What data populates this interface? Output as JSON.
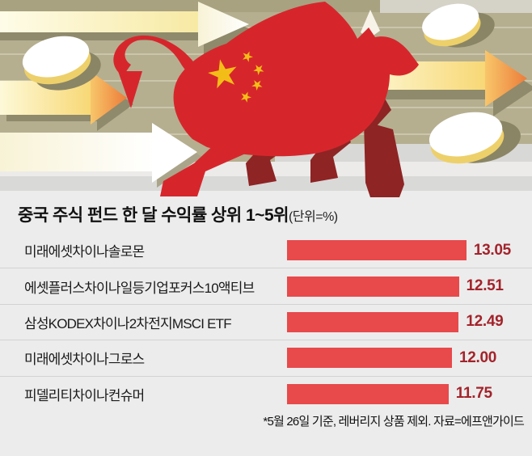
{
  "header_graphic": {
    "icons": [
      {
        "name": "bull-icon",
        "description": "red charging bull with China flag stars",
        "color": "#d6262c",
        "leg_color": "#8e2424"
      },
      {
        "name": "china-star-icon",
        "color": "#f3bd17",
        "count": 5
      },
      {
        "name": "coin-icon",
        "face_color": "#ffffff",
        "rim_color": "#edd06a",
        "count": 3
      },
      {
        "name": "arrow-right-icon",
        "count": 4,
        "colors": [
          "#ffffff",
          "#f7e9a2",
          "#ee7d3a"
        ]
      }
    ],
    "background": {
      "base": "#b5af90",
      "stripe": "#cac5ab",
      "ground": "#d9d9d8"
    }
  },
  "chart": {
    "title": "중국 주식 펀드 한 달 수익률 상위 1~5위",
    "unit_label": "(단위=%)",
    "footnote": "*5월 26일 기준, 레버리지 상품 제외. 자료=에프앤가이드",
    "bar_color": "#e8494b",
    "value_color": "#a3232b",
    "background": "#ececec"
  },
  "chart_data": {
    "type": "bar",
    "orientation": "horizontal",
    "title": "중국 주식 펀드 한 달 수익률 상위 1~5위",
    "unit": "%",
    "categories": [
      "미래에셋차이나솔로몬",
      "에셋플러스차이나일등기업포커스10액티브",
      "삼성KODEX차이나2차전지MSCI ETF",
      "미래에셋차이나그로스",
      "피델리티차이나컨슈머"
    ],
    "values": [
      13.05,
      12.51,
      12.49,
      12.0,
      11.75
    ],
    "value_labels": [
      "13.05",
      "12.51",
      "12.49",
      "12.00",
      "11.75"
    ],
    "xlim": [
      0,
      13.5
    ],
    "value_axis_visible": false,
    "grid": false,
    "legend": false,
    "footnote": "*5월 26일 기준, 레버리지 상품 제외. 자료=에프앤가이드"
  }
}
